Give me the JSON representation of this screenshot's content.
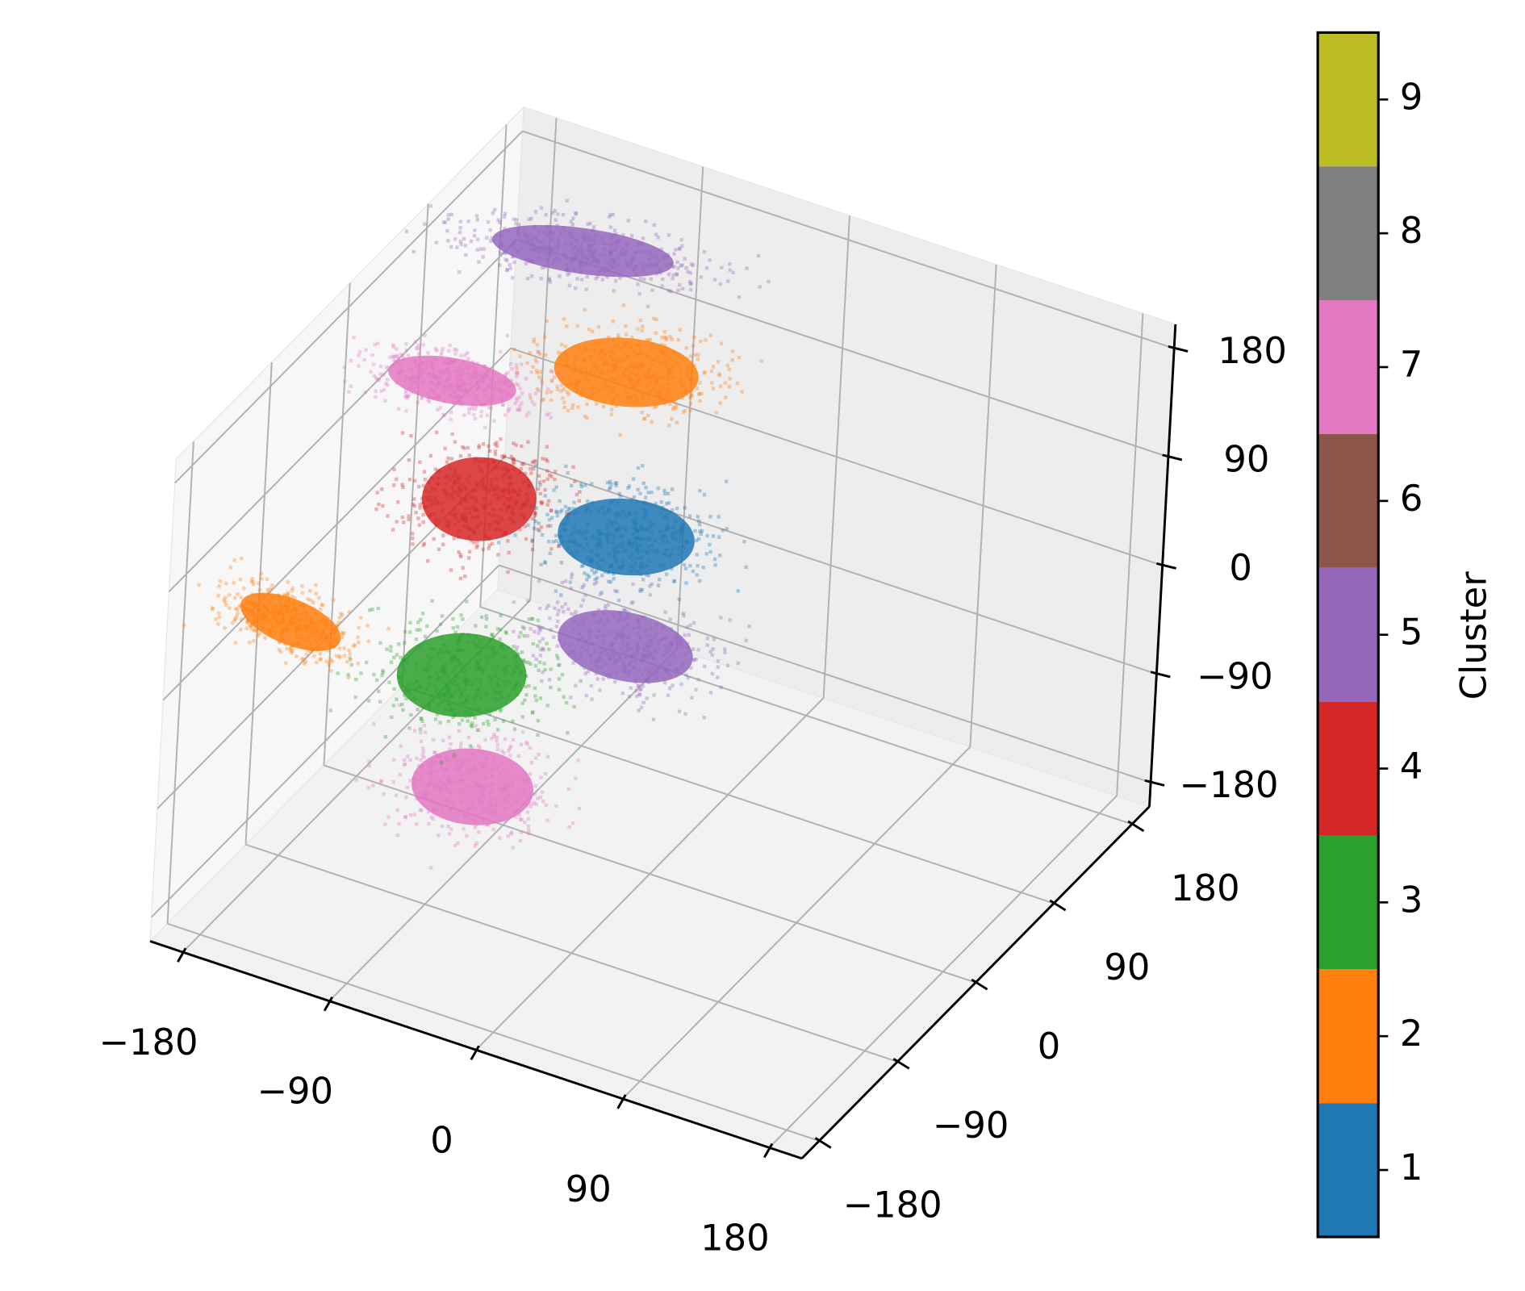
{
  "chart_data": {
    "type": "scatter3d",
    "xlim": [
      -200,
      200
    ],
    "ylim": [
      -200,
      200
    ],
    "zlim": [
      -200,
      200
    ],
    "xticks": [
      {
        "value": -180,
        "label": "−180"
      },
      {
        "value": -90,
        "label": "−90"
      },
      0,
      90,
      180
    ],
    "yticks": [
      {
        "value": -180,
        "label": "−180"
      },
      {
        "value": -90,
        "label": "−90"
      },
      0,
      90,
      180
    ],
    "zticks": [
      {
        "value": -180,
        "label": "−180"
      },
      {
        "value": -90,
        "label": "−90"
      },
      0,
      90,
      180
    ],
    "grid": true,
    "clusters": [
      {
        "cluster": 5,
        "x": -120,
        "y": 120,
        "z": 175
      },
      {
        "cluster": 2,
        "x": -80,
        "y": 100,
        "z": 107
      },
      {
        "cluster": 7,
        "x": -155,
        "y": 40,
        "z": 110
      },
      {
        "cluster": 1,
        "x": -45,
        "y": 40,
        "z": 30
      },
      {
        "cluster": 5,
        "x": -37,
        "y": 30,
        "z": -50
      },
      {
        "cluster": 4,
        "x": -125,
        "y": 20,
        "z": 40
      },
      {
        "cluster": 2,
        "x": -195,
        "y": -60,
        "z": -35
      },
      {
        "cluster": 7,
        "x": -80,
        "y": -60,
        "z": -120
      },
      {
        "cluster": 3,
        "x": -110,
        "y": -20,
        "z": -70
      }
    ],
    "colorbar": {
      "label": "Cluster",
      "clim": [
        0.5,
        9.5
      ],
      "ticks": [
        1,
        2,
        3,
        4,
        5,
        6,
        7,
        8,
        9
      ],
      "colors": [
        "#1f77b4",
        "#ff7f0e",
        "#2ca02c",
        "#d62728",
        "#9467bd",
        "#8c564b",
        "#e377c2",
        "#7f7f7f",
        "#bcbd22"
      ]
    }
  }
}
